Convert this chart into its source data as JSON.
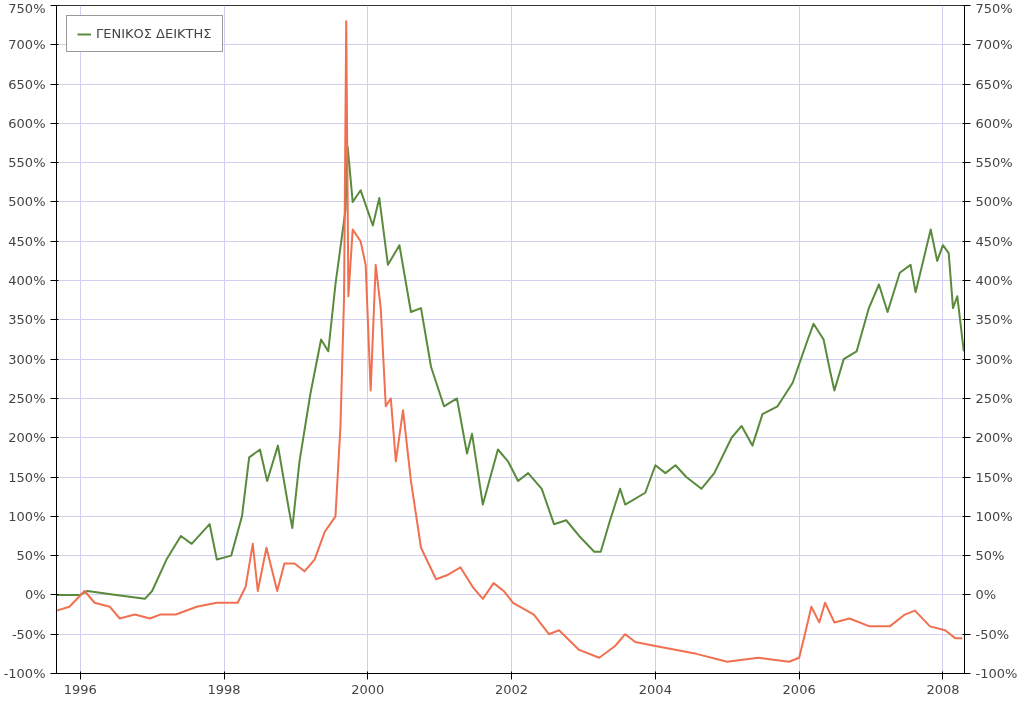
{
  "chart_data": {
    "type": "line",
    "legend": "top left",
    "grid": true,
    "marker": "none",
    "line_style": "solid",
    "xlim": [
      1995.67,
      2008.3
    ],
    "xticks": [
      1996,
      1998,
      2000,
      2002,
      2004,
      2006,
      2008
    ],
    "ylim": [
      -100,
      750
    ],
    "yticks": [
      {
        "value": -100,
        "label": "-100%"
      },
      {
        "value": -50,
        "label": "-50%"
      },
      {
        "value": 0,
        "label": "0%"
      },
      {
        "value": 50,
        "label": "50%"
      },
      {
        "value": 100,
        "label": "100%"
      },
      {
        "value": 150,
        "label": "150%"
      },
      {
        "value": 200,
        "label": "200%"
      },
      {
        "value": 250,
        "label": "250%"
      },
      {
        "value": 300,
        "label": "300%"
      },
      {
        "value": 350,
        "label": "350%"
      },
      {
        "value": 400,
        "label": "400%"
      },
      {
        "value": 450,
        "label": "450%"
      },
      {
        "value": 500,
        "label": "500%"
      },
      {
        "value": 550,
        "label": "550%"
      },
      {
        "value": 600,
        "label": "600%"
      },
      {
        "value": 650,
        "label": "650%"
      },
      {
        "value": 700,
        "label": "700%"
      },
      {
        "value": 750,
        "label": "750%"
      }
    ],
    "y2lim": [
      -100,
      750
    ],
    "y2ticks": [
      {
        "value": -100,
        "label": "-100%"
      },
      {
        "value": -50,
        "label": "-50%"
      },
      {
        "value": 0,
        "label": "0%"
      },
      {
        "value": 50,
        "label": "50%"
      },
      {
        "value": 100,
        "label": "100%"
      },
      {
        "value": 150,
        "label": "150%"
      },
      {
        "value": 200,
        "label": "200%"
      },
      {
        "value": 250,
        "label": "250%"
      },
      {
        "value": 300,
        "label": "300%"
      },
      {
        "value": 350,
        "label": "350%"
      },
      {
        "value": 400,
        "label": "400%"
      },
      {
        "value": 450,
        "label": "450%"
      },
      {
        "value": 500,
        "label": "500%"
      },
      {
        "value": 550,
        "label": "550%"
      },
      {
        "value": 600,
        "label": "600%"
      },
      {
        "value": 650,
        "label": "650%"
      },
      {
        "value": 700,
        "label": "700%"
      },
      {
        "value": 750,
        "label": "750%"
      }
    ],
    "series": [
      {
        "name": "ΓΕΝΙΚΟΣ ΔΕΙΚΤΗΣ",
        "color": "#5a8a3c",
        "x": [
          1995.67,
          1996.0,
          1996.1,
          1996.5,
          1996.9,
          1997.0,
          1997.2,
          1997.4,
          1997.55,
          1997.8,
          1997.9,
          1998.1,
          1998.25,
          1998.35,
          1998.5,
          1998.6,
          1998.75,
          1998.9,
          1998.95,
          1999.05,
          1999.2,
          1999.35,
          1999.45,
          1999.55,
          1999.69,
          1999.72,
          1999.79,
          1999.9,
          2000.07,
          2000.16,
          2000.28,
          2000.44,
          2000.6,
          2000.74,
          2000.88,
          2001.06,
          2001.24,
          2001.38,
          2001.45,
          2001.6,
          2001.81,
          2001.95,
          2002.09,
          2002.23,
          2002.42,
          2002.59,
          2002.76,
          2002.94,
          2003.15,
          2003.24,
          2003.37,
          2003.51,
          2003.58,
          2003.86,
          2004.0,
          2004.14,
          2004.28,
          2004.43,
          2004.64,
          2004.82,
          2005.06,
          2005.2,
          2005.35,
          2005.49,
          2005.7,
          2005.91,
          2006.12,
          2006.2,
          2006.34,
          2006.43,
          2006.49,
          2006.62,
          2006.8,
          2006.97,
          2007.11,
          2007.23,
          2007.4,
          2007.55,
          2007.62,
          2007.83,
          2007.92,
          2008.0,
          2008.08,
          2008.14,
          2008.2,
          2008.29
        ],
        "values": [
          0,
          0,
          5,
          0,
          -5,
          5,
          45,
          75,
          65,
          90,
          45,
          50,
          100,
          175,
          185,
          145,
          190,
          110,
          85,
          170,
          255,
          325,
          310,
          395,
          490,
          570,
          500,
          515,
          470,
          505,
          420,
          445,
          360,
          365,
          290,
          240,
          250,
          180,
          205,
          115,
          185,
          170,
          145,
          155,
          135,
          90,
          95,
          75,
          55,
          55,
          95,
          135,
          115,
          130,
          165,
          155,
          165,
          150,
          135,
          155,
          200,
          215,
          190,
          230,
          240,
          270,
          325,
          345,
          325,
          285,
          260,
          300,
          310,
          365,
          395,
          360,
          410,
          420,
          385,
          465,
          425,
          445,
          435,
          365,
          380,
          310
        ]
      },
      {
        "color": "#f07050",
        "x": [
          1995.67,
          1995.85,
          1996.06,
          1996.2,
          1996.41,
          1996.55,
          1996.76,
          1996.97,
          1997.11,
          1997.33,
          1997.62,
          1997.9,
          1998.19,
          1998.3,
          1998.4,
          1998.47,
          1998.59,
          1998.74,
          1998.84,
          1998.98,
          1999.12,
          1999.26,
          1999.4,
          1999.55,
          1999.62,
          1999.67,
          1999.7,
          1999.73,
          1999.79,
          1999.9,
          1999.97,
          2000.04,
          2000.11,
          2000.18,
          2000.25,
          2000.32,
          2000.39,
          2000.49,
          2000.6,
          2000.74,
          2000.95,
          2001.1,
          2001.29,
          2001.46,
          2001.6,
          2001.75,
          2001.89,
          2002.02,
          2002.31,
          2002.52,
          2002.66,
          2002.94,
          2003.22,
          2003.44,
          2003.58,
          2003.72,
          2004.0,
          2004.57,
          2005.0,
          2005.43,
          2005.86,
          2006.0,
          2006.08,
          2006.17,
          2006.28,
          2006.36,
          2006.49,
          2006.7,
          2006.98,
          2007.26,
          2007.47,
          2007.61,
          2007.82,
          2008.03,
          2008.17,
          2008.27
        ],
        "values": [
          -20,
          -15,
          5,
          -10,
          -15,
          -30,
          -25,
          -30,
          -25,
          -25,
          -15,
          -10,
          -10,
          10,
          65,
          5,
          60,
          5,
          40,
          40,
          30,
          45,
          80,
          100,
          215,
          380,
          730,
          380,
          465,
          450,
          420,
          260,
          420,
          365,
          240,
          250,
          170,
          235,
          145,
          60,
          20,
          25,
          35,
          10,
          -5,
          15,
          5,
          -10,
          -25,
          -50,
          -45,
          -70,
          -80,
          -65,
          -50,
          -60,
          -65,
          -75,
          -85,
          -80,
          -85,
          -80,
          -50,
          -15,
          -35,
          -10,
          -35,
          -30,
          -40,
          -40,
          -25,
          -20,
          -40,
          -45,
          -55,
          -55
        ]
      }
    ]
  }
}
